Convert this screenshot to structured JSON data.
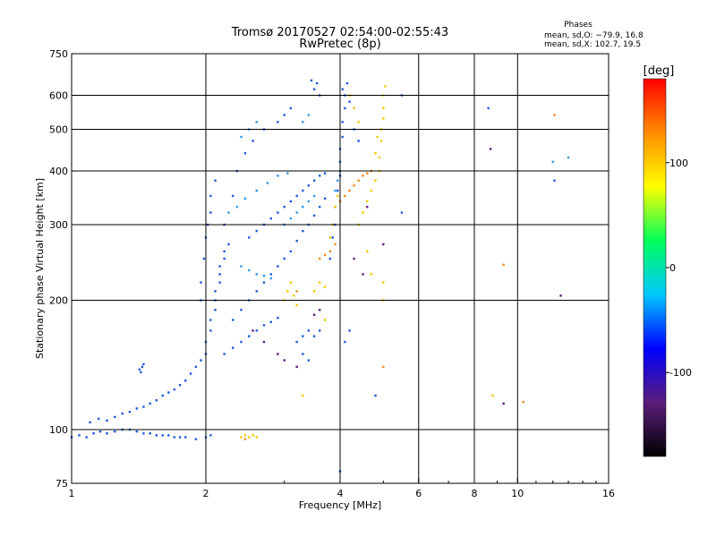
{
  "chart_data": {
    "type": "scatter",
    "title": "Tromsø 20170527 02:54:00-02:55:43",
    "subtitle": "RwPretec (8p)",
    "xlabel": "Frequency [MHz]",
    "ylabel": "Stationary phase Virtual Height [km]",
    "x_scale": "log",
    "y_scale": "log",
    "xlim": [
      1,
      16
    ],
    "ylim": [
      75,
      750
    ],
    "x_ticks": [
      1,
      2,
      4,
      6,
      8,
      10,
      16
    ],
    "x_tick_labels": [
      "1",
      "2",
      "4",
      "6",
      "8",
      "10",
      "16"
    ],
    "y_ticks": [
      75,
      100,
      200,
      300,
      400,
      500,
      600,
      750
    ],
    "y_tick_labels": [
      "75",
      "100",
      "200",
      "300",
      "400",
      "500",
      "600",
      "750"
    ],
    "grid": true,
    "stats": {
      "heading": "Phases",
      "line_o": "mean, sd,O: −79.9, 16.8",
      "line_x": "mean, sd,X: 102.7, 19.5"
    },
    "colorbar": {
      "title": "[deg]",
      "min": -180,
      "max": 180,
      "tick_values": [
        100,
        0,
        -100
      ],
      "tick_labels": [
        "100",
        "0",
        "-100"
      ],
      "stops": [
        "#000000",
        "#5a1e7a",
        "#0000ff",
        "#00c8ff",
        "#00ff5a",
        "#ffff00",
        "#ff8c00",
        "#ff0000"
      ]
    },
    "color_map": {
      "o_mode": "#1e5adc",
      "o_alt": "#3296e6",
      "x_mode": "#f0c800",
      "x_alt": "#f08c1e"
    },
    "point_series": [
      {
        "mode": "o",
        "color": "#1e5adc",
        "points": [
          [
            1.0,
            96
          ],
          [
            1.04,
            97
          ],
          [
            1.08,
            96
          ],
          [
            1.12,
            98
          ],
          [
            1.16,
            99
          ],
          [
            1.2,
            98
          ],
          [
            1.25,
            99
          ],
          [
            1.3,
            100
          ],
          [
            1.35,
            100
          ],
          [
            1.4,
            99
          ],
          [
            1.45,
            98
          ],
          [
            1.5,
            98
          ],
          [
            1.55,
            97
          ],
          [
            1.6,
            97
          ],
          [
            1.65,
            97
          ],
          [
            1.7,
            96
          ],
          [
            1.75,
            96
          ],
          [
            1.8,
            96
          ],
          [
            1.9,
            95
          ],
          [
            2.0,
            96
          ],
          [
            2.05,
            97
          ],
          [
            1.1,
            104
          ],
          [
            1.15,
            106
          ],
          [
            1.2,
            105
          ],
          [
            1.25,
            107
          ],
          [
            1.3,
            109
          ],
          [
            1.35,
            110
          ],
          [
            1.4,
            112
          ],
          [
            1.45,
            113
          ],
          [
            1.5,
            115
          ],
          [
            1.55,
            117
          ],
          [
            1.6,
            120
          ],
          [
            1.65,
            122
          ],
          [
            1.7,
            124
          ],
          [
            1.75,
            127
          ],
          [
            1.8,
            130
          ],
          [
            1.85,
            135
          ],
          [
            1.9,
            140
          ],
          [
            1.95,
            145
          ],
          [
            2.0,
            150
          ],
          [
            2.0,
            160
          ],
          [
            2.05,
            170
          ],
          [
            2.05,
            180
          ],
          [
            2.1,
            190
          ],
          [
            2.1,
            200
          ],
          [
            2.1,
            210
          ],
          [
            2.15,
            220
          ],
          [
            2.15,
            230
          ],
          [
            2.15,
            240
          ],
          [
            2.2,
            250
          ],
          [
            2.2,
            260
          ],
          [
            2.25,
            270
          ],
          [
            1.95,
            200
          ],
          [
            1.95,
            220
          ],
          [
            1.98,
            250
          ],
          [
            2.0,
            280
          ],
          [
            2.02,
            300
          ],
          [
            2.05,
            320
          ],
          [
            2.05,
            350
          ],
          [
            2.1,
            380
          ],
          [
            1.42,
            138
          ],
          [
            1.44,
            140
          ],
          [
            1.43,
            136
          ],
          [
            1.45,
            142
          ],
          [
            2.2,
            300
          ],
          [
            2.3,
            350
          ],
          [
            2.35,
            400
          ],
          [
            2.45,
            440
          ],
          [
            2.55,
            470
          ],
          [
            2.7,
            500
          ],
          [
            2.9,
            520
          ],
          [
            3.0,
            540
          ],
          [
            3.1,
            560
          ],
          [
            2.3,
            180
          ],
          [
            2.4,
            190
          ],
          [
            2.5,
            200
          ],
          [
            2.6,
            210
          ],
          [
            2.7,
            220
          ],
          [
            2.8,
            230
          ],
          [
            2.9,
            240
          ],
          [
            3.0,
            250
          ],
          [
            3.1,
            260
          ],
          [
            3.2,
            275
          ],
          [
            3.3,
            290
          ],
          [
            3.4,
            300
          ],
          [
            3.5,
            315
          ],
          [
            3.6,
            330
          ],
          [
            3.7,
            345
          ],
          [
            2.2,
            150
          ],
          [
            2.3,
            155
          ],
          [
            2.4,
            160
          ],
          [
            2.5,
            165
          ],
          [
            2.6,
            170
          ],
          [
            2.7,
            175
          ],
          [
            2.8,
            178
          ],
          [
            2.9,
            182
          ],
          [
            2.5,
            280
          ],
          [
            2.6,
            290
          ],
          [
            2.7,
            300
          ],
          [
            2.8,
            310
          ],
          [
            2.9,
            320
          ],
          [
            3.0,
            330
          ],
          [
            3.1,
            340
          ],
          [
            3.2,
            350
          ],
          [
            3.3,
            360
          ],
          [
            3.4,
            370
          ],
          [
            3.5,
            380
          ],
          [
            3.6,
            390
          ],
          [
            3.7,
            395
          ],
          [
            3.2,
            160
          ],
          [
            3.3,
            165
          ],
          [
            3.4,
            170
          ],
          [
            3.5,
            165
          ],
          [
            3.6,
            170
          ],
          [
            3.3,
            150
          ],
          [
            3.4,
            145
          ],
          [
            3.5,
            620
          ],
          [
            3.55,
            640
          ],
          [
            3.6,
            600
          ],
          [
            3.45,
            650
          ],
          [
            3.8,
            250
          ],
          [
            3.85,
            280
          ],
          [
            3.9,
            300
          ],
          [
            3.9,
            330
          ],
          [
            3.95,
            360
          ],
          [
            4.0,
            390
          ],
          [
            4.0,
            420
          ],
          [
            4.0,
            450
          ],
          [
            4.05,
            480
          ],
          [
            4.05,
            520
          ],
          [
            4.1,
            560
          ],
          [
            4.1,
            600
          ],
          [
            4.15,
            640
          ],
          [
            4.05,
            620
          ],
          [
            4.2,
            580
          ],
          [
            4.3,
            500
          ],
          [
            4.4,
            470
          ],
          [
            4.1,
            160
          ],
          [
            4.2,
            170
          ],
          [
            4.0,
            80
          ],
          [
            4.8,
            120
          ],
          [
            5.5,
            600
          ],
          [
            5.5,
            320
          ],
          [
            8.6,
            560
          ],
          [
            12.1,
            380
          ]
        ]
      },
      {
        "mode": "o",
        "color": "#3296e6",
        "points": [
          [
            2.25,
            320
          ],
          [
            2.35,
            330
          ],
          [
            2.45,
            345
          ],
          [
            2.6,
            360
          ],
          [
            2.75,
            375
          ],
          [
            2.9,
            390
          ],
          [
            3.05,
            395
          ],
          [
            2.4,
            480
          ],
          [
            2.5,
            500
          ],
          [
            2.6,
            520
          ],
          [
            2.4,
            240
          ],
          [
            2.5,
            235
          ],
          [
            2.6,
            230
          ],
          [
            2.7,
            228
          ],
          [
            2.8,
            225
          ],
          [
            3.0,
            300
          ],
          [
            3.1,
            310
          ],
          [
            3.2,
            320
          ],
          [
            3.3,
            330
          ],
          [
            3.4,
            340
          ],
          [
            3.5,
            350
          ],
          [
            3.3,
            520
          ],
          [
            3.4,
            540
          ],
          [
            3.9,
            360
          ],
          [
            3.95,
            380
          ],
          [
            4.0,
            400
          ],
          [
            12.0,
            420
          ],
          [
            13.0,
            430
          ]
        ]
      },
      {
        "mode": "o",
        "color": "#5a1e7a",
        "points": [
          [
            2.55,
            170
          ],
          [
            2.7,
            160
          ],
          [
            2.9,
            150
          ],
          [
            3.0,
            145
          ],
          [
            3.2,
            140
          ],
          [
            3.5,
            185
          ],
          [
            3.6,
            190
          ],
          [
            4.3,
            250
          ],
          [
            4.5,
            230
          ],
          [
            4.6,
            330
          ],
          [
            5.0,
            270
          ],
          [
            8.7,
            450
          ],
          [
            9.3,
            115
          ],
          [
            12.5,
            205
          ]
        ]
      },
      {
        "mode": "x",
        "color": "#f0c800",
        "points": [
          [
            2.4,
            96
          ],
          [
            2.45,
            97
          ],
          [
            2.5,
            96
          ],
          [
            2.55,
            97
          ],
          [
            2.6,
            96
          ],
          [
            3.0,
            200
          ],
          [
            3.05,
            210
          ],
          [
            3.1,
            220
          ],
          [
            3.15,
            205
          ],
          [
            3.2,
            195
          ],
          [
            3.5,
            210
          ],
          [
            3.6,
            220
          ],
          [
            3.7,
            215
          ],
          [
            3.8,
            280
          ],
          [
            3.85,
            300
          ],
          [
            3.9,
            330
          ],
          [
            3.95,
            350
          ],
          [
            4.4,
            300
          ],
          [
            4.5,
            320
          ],
          [
            4.6,
            340
          ],
          [
            4.7,
            360
          ],
          [
            4.8,
            380
          ],
          [
            4.9,
            400
          ],
          [
            4.9,
            430
          ],
          [
            4.95,
            470
          ],
          [
            4.95,
            500
          ],
          [
            5.0,
            530
          ],
          [
            5.0,
            560
          ],
          [
            5.0,
            600
          ],
          [
            5.05,
            630
          ],
          [
            4.85,
            480
          ],
          [
            4.8,
            440
          ],
          [
            4.2,
            600
          ],
          [
            4.3,
            560
          ],
          [
            4.4,
            520
          ],
          [
            4.6,
            260
          ],
          [
            4.7,
            230
          ],
          [
            5.0,
            220
          ],
          [
            5.0,
            200
          ],
          [
            8.8,
            120
          ],
          [
            3.3,
            120
          ],
          [
            3.7,
            180
          ]
        ]
      },
      {
        "mode": "x",
        "color": "#f08c1e",
        "points": [
          [
            3.6,
            250
          ],
          [
            3.7,
            255
          ],
          [
            3.8,
            260
          ],
          [
            3.9,
            270
          ],
          [
            4.0,
            340
          ],
          [
            4.1,
            350
          ],
          [
            4.2,
            360
          ],
          [
            4.3,
            370
          ],
          [
            4.4,
            380
          ],
          [
            4.5,
            390
          ],
          [
            4.6,
            395
          ],
          [
            4.7,
            400
          ],
          [
            2.45,
            95
          ],
          [
            3.2,
            210
          ],
          [
            5.0,
            140
          ],
          [
            10.3,
            116
          ],
          [
            12.1,
            540
          ],
          [
            9.3,
            242
          ]
        ]
      }
    ]
  }
}
